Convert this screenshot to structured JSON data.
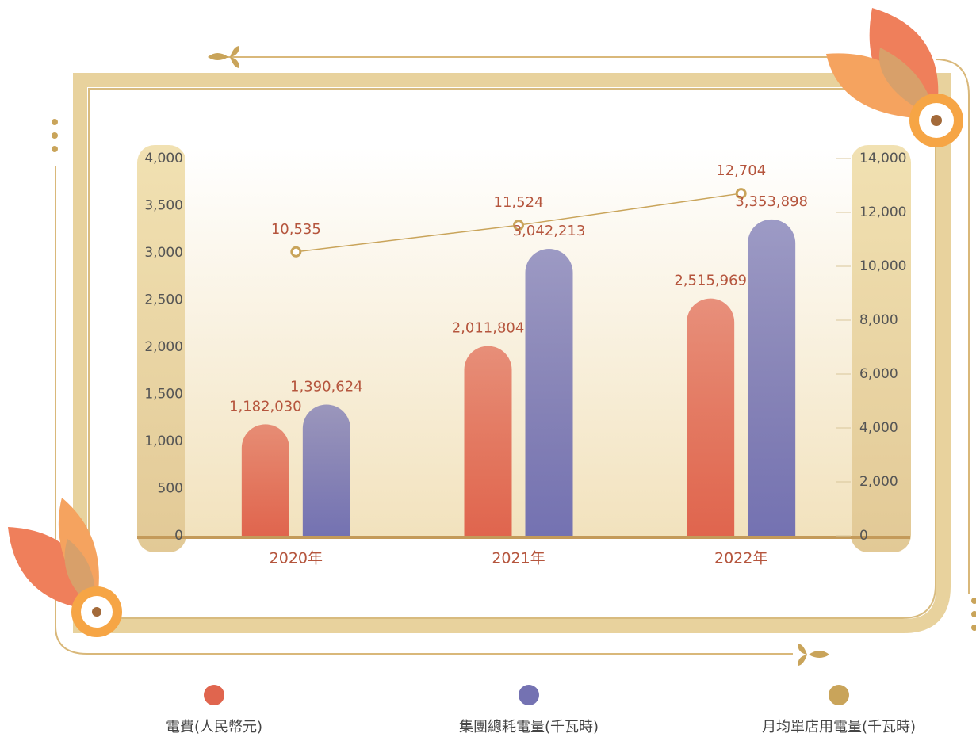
{
  "chart_data": {
    "type": "bar",
    "categories": [
      "2020年",
      "2021年",
      "2022年"
    ],
    "series": [
      {
        "name": "電費(人民幣元)",
        "color": "#e0654e",
        "values": [
          1182.03,
          2011.804,
          2515.969
        ],
        "value_labels": [
          "1,182,030",
          "2,011,804",
          "2,515,969"
        ]
      },
      {
        "name": "集團總耗電量(千瓦時)",
        "color": "#7472b2",
        "values": [
          1390.624,
          3042.213,
          3353.898
        ],
        "value_labels": [
          "1,390,624",
          "3,042,213",
          "3,353,898"
        ]
      },
      {
        "name": "月均單店用電量(千瓦時)",
        "color": "#c9a45a",
        "type": "line",
        "axis": "y2",
        "values": [
          10535,
          11524,
          12704
        ],
        "value_labels": [
          "10,535",
          "11,524",
          "12,704"
        ]
      }
    ],
    "ylim": [
      0,
      4000
    ],
    "yticks": [
      0,
      500,
      {
        "value": 1000,
        "label": "1,000"
      },
      {
        "value": 1500,
        "label": "1,500"
      },
      {
        "value": 2000,
        "label": "2,000"
      },
      {
        "value": 2500,
        "label": "2,500"
      },
      {
        "value": 3000,
        "label": "3,000"
      },
      {
        "value": 3500,
        "label": "3,500"
      },
      {
        "value": 4000,
        "label": "4,000"
      }
    ],
    "y2lim": [
      0,
      14000
    ],
    "y2ticks": [
      0,
      {
        "value": 2000,
        "label": "2,000"
      },
      {
        "value": 4000,
        "label": "4,000"
      },
      {
        "value": 6000,
        "label": "6,000"
      },
      {
        "value": 8000,
        "label": "8,000"
      },
      {
        "value": 10000,
        "label": "10,000"
      },
      {
        "value": 12000,
        "label": "12,000"
      },
      {
        "value": 14000,
        "label": "14,000"
      }
    ]
  }
}
